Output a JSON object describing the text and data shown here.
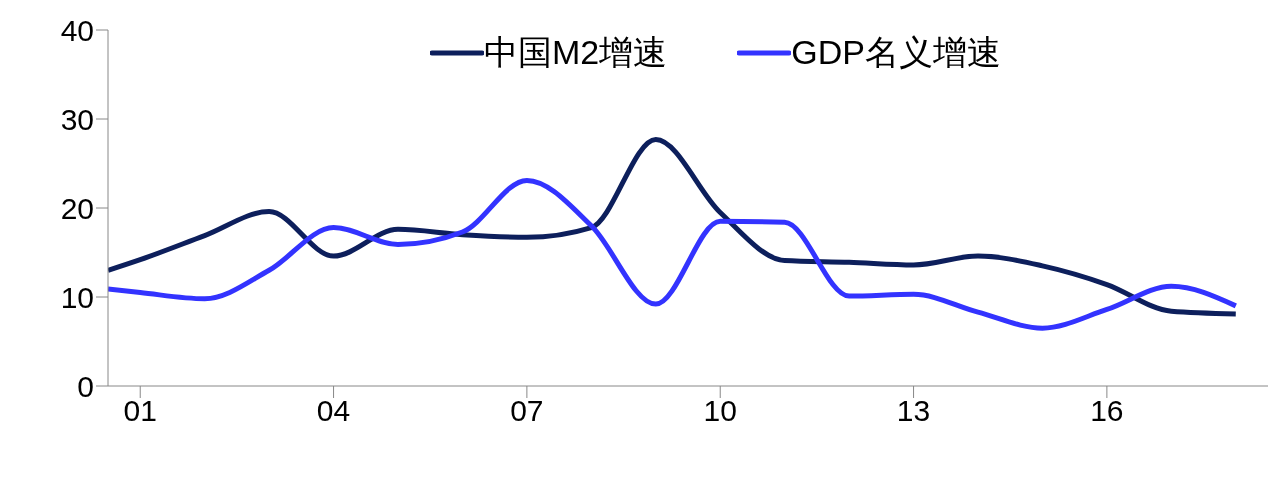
{
  "chart_data": {
    "type": "line",
    "xlim": [
      2000.5,
      2018.5
    ],
    "xticks": [
      {
        "value": 2001,
        "label": "01"
      },
      {
        "value": 2004,
        "label": "04"
      },
      {
        "value": 2007,
        "label": "07"
      },
      {
        "value": 2010,
        "label": "10"
      },
      {
        "value": 2013,
        "label": "13"
      },
      {
        "value": 2016,
        "label": "16"
      }
    ],
    "ylim": [
      0,
      40
    ],
    "yticks": [
      0,
      10,
      20,
      30,
      40
    ],
    "grid": false,
    "legend": "top right",
    "marker": "none",
    "line_style": "solid",
    "series": [
      {
        "name": "中国M2增速",
        "color": "#0d1f5c",
        "x": [
          2000.5,
          2001,
          2002,
          2003,
          2004,
          2005,
          2006,
          2007,
          2008,
          2009,
          2010,
          2011,
          2012,
          2013,
          2014,
          2015,
          2016,
          2017,
          2018
        ],
        "values": [
          13.0,
          14.2,
          16.9,
          19.6,
          14.6,
          17.6,
          17.0,
          16.7,
          17.8,
          27.7,
          19.5,
          14.1,
          13.9,
          13.6,
          14.6,
          13.5,
          11.4,
          8.4,
          8.1
        ]
      },
      {
        "name": "GDP名义增速",
        "color": "#3333ff",
        "x": [
          2000.5,
          2001,
          2002,
          2003,
          2004,
          2005,
          2006,
          2007,
          2008,
          2009,
          2010,
          2011,
          2012,
          2013,
          2014,
          2015,
          2016,
          2017,
          2018
        ],
        "values": [
          10.9,
          10.5,
          9.8,
          13.0,
          17.8,
          15.9,
          17.3,
          23.1,
          18.0,
          9.2,
          18.5,
          18.4,
          10.1,
          10.3,
          8.3,
          6.5,
          8.6,
          11.2,
          9.0
        ]
      }
    ]
  }
}
